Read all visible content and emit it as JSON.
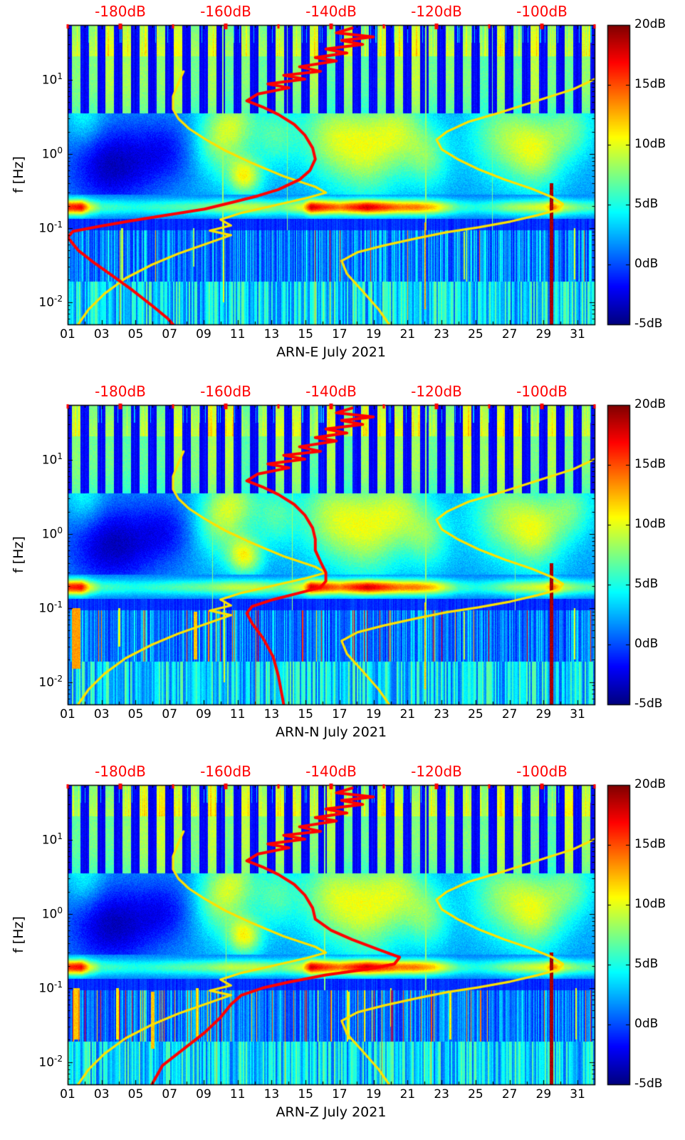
{
  "chart_data": {
    "type": "heatmap",
    "subtype": "seismic PSD spectrograms (jet colormap) with overlaid median PSD curve (red) and noise-model curves (yellow); top x-axis in dB (red) for the overlay curves",
    "station": "ARN",
    "month": "July 2021",
    "colormap": "jet",
    "axes": {
      "x": {
        "range_days": [
          1,
          32
        ],
        "tick_labels": [
          "01",
          "03",
          "05",
          "07",
          "09",
          "11",
          "13",
          "15",
          "17",
          "19",
          "21",
          "23",
          "25",
          "27",
          "29",
          "31"
        ],
        "tick_days": [
          1,
          3,
          5,
          7,
          9,
          11,
          13,
          15,
          17,
          19,
          21,
          23,
          25,
          27,
          29,
          31
        ]
      },
      "x_top": {
        "unit": "dB",
        "color": "#ff0000",
        "range_dB": [
          -190,
          -90
        ],
        "tick_labels": [
          "-180dB",
          "-160dB",
          "-140dB",
          "-120dB",
          "-100dB"
        ],
        "tick_values": [
          -180,
          -160,
          -140,
          -120,
          -100
        ]
      },
      "y": {
        "label": "f [Hz]",
        "scale": "log",
        "range_hz": [
          0.005,
          55
        ],
        "tick_labels": [
          "10^1",
          "10^0",
          "10^-1",
          "10^-2"
        ],
        "tick_values": [
          10,
          1,
          0.1,
          0.01
        ]
      },
      "colorbar": {
        "range_dB": [
          -5,
          20
        ],
        "tick_labels": [
          "20dB",
          "15dB",
          "10dB",
          "5dB",
          "0dB",
          "-5dB"
        ],
        "tick_values": [
          20,
          15,
          10,
          5,
          0,
          -5
        ]
      }
    },
    "overlays": {
      "red_color": "#ff0000",
      "yellow_color": "#ffe100",
      "noise_model_low_dB_hz": [
        [
          -168,
          13
        ],
        [
          -169,
          9
        ],
        [
          -170,
          6
        ],
        [
          -170,
          4
        ],
        [
          -169,
          3
        ],
        [
          -167,
          2.2
        ],
        [
          -164,
          1.6
        ],
        [
          -160,
          1.1
        ],
        [
          -155,
          0.75
        ],
        [
          -149,
          0.5
        ],
        [
          -143,
          0.36
        ],
        [
          -141,
          0.3
        ],
        [
          -145,
          0.25
        ],
        [
          -151,
          0.2
        ],
        [
          -157,
          0.16
        ],
        [
          -161,
          0.13
        ],
        [
          -159,
          0.108
        ],
        [
          -163,
          0.092
        ],
        [
          -159,
          0.08
        ],
        [
          -164,
          0.06
        ],
        [
          -169,
          0.045
        ],
        [
          -174,
          0.032
        ],
        [
          -179,
          0.021
        ],
        [
          -183,
          0.013
        ],
        [
          -186,
          0.008
        ],
        [
          -188,
          0.005
        ]
      ],
      "noise_model_high_dB_hz": [
        [
          -89,
          11
        ],
        [
          -94,
          7.5
        ],
        [
          -101,
          5.2
        ],
        [
          -108,
          3.6
        ],
        [
          -114,
          2.7
        ],
        [
          -118,
          2.0
        ],
        [
          -120,
          1.55
        ],
        [
          -119,
          1.15
        ],
        [
          -116,
          0.85
        ],
        [
          -112,
          0.62
        ],
        [
          -107,
          0.45
        ],
        [
          -102,
          0.34
        ],
        [
          -98,
          0.26
        ],
        [
          -96,
          0.21
        ],
        [
          -97,
          0.175
        ],
        [
          -101,
          0.148
        ],
        [
          -106,
          0.122
        ],
        [
          -112,
          0.102
        ],
        [
          -118,
          0.088
        ],
        [
          -124,
          0.072
        ],
        [
          -130,
          0.058
        ],
        [
          -135,
          0.047
        ],
        [
          -138,
          0.036
        ],
        [
          -137,
          0.024
        ],
        [
          -134,
          0.014
        ],
        [
          -131,
          0.008
        ],
        [
          -129,
          0.005
        ]
      ]
    },
    "texture": {
      "microseism_envelope_day_dB": [
        [
          1,
          15
        ],
        [
          1.8,
          16
        ],
        [
          2.3,
          9
        ],
        [
          3,
          5
        ],
        [
          5,
          4
        ],
        [
          7,
          5
        ],
        [
          9,
          6
        ],
        [
          10.5,
          8
        ],
        [
          12,
          8
        ],
        [
          13.5,
          6
        ],
        [
          14.8,
          9
        ],
        [
          15.3,
          17
        ],
        [
          16,
          15
        ],
        [
          17,
          13
        ],
        [
          17.8,
          15
        ],
        [
          18.6,
          17
        ],
        [
          19.5,
          15
        ],
        [
          20.5,
          13
        ],
        [
          21.5,
          13
        ],
        [
          22.5,
          11
        ],
        [
          23.2,
          8
        ],
        [
          24,
          5
        ],
        [
          25,
          4
        ],
        [
          26,
          5
        ],
        [
          27,
          7
        ],
        [
          28,
          8
        ],
        [
          29,
          9
        ],
        [
          29.6,
          13
        ],
        [
          30.2,
          8
        ],
        [
          31,
          6
        ],
        [
          32,
          5
        ]
      ],
      "blobs_day_logf_sd_sf_amp": [
        [
          3.6,
          -0.15,
          1.8,
          0.38,
          -5.5
        ],
        [
          6.8,
          0.05,
          1.2,
          0.3,
          -3
        ],
        [
          9.8,
          0.2,
          1.0,
          0.35,
          5.5
        ],
        [
          11.4,
          -0.3,
          0.7,
          0.18,
          8
        ],
        [
          11.0,
          0.45,
          0.9,
          0.3,
          4.5
        ],
        [
          13.2,
          0.25,
          0.9,
          0.3,
          4
        ],
        [
          16.3,
          0.25,
          1.3,
          0.4,
          5.5
        ],
        [
          18.6,
          0.05,
          1.4,
          0.45,
          6.5
        ],
        [
          20.6,
          0.35,
          1.1,
          0.35,
          5
        ],
        [
          22.2,
          -0.05,
          0.9,
          0.3,
          4.5
        ],
        [
          26.6,
          0.25,
          1.4,
          0.4,
          5.5
        ],
        [
          28.6,
          0.0,
          1.1,
          0.35,
          6
        ],
        [
          30.6,
          0.35,
          1.0,
          0.3,
          4.5
        ],
        [
          2.0,
          0.5,
          0.8,
          0.3,
          3
        ]
      ]
    },
    "panels": [
      {
        "xlabel": "ARN-E July 2021",
        "ylabel": "f [Hz]",
        "seed": 11,
        "low_spike_prob": 0.015,
        "median_psd_dB_hz": [
          [
            -136,
            50
          ],
          [
            -139,
            43
          ],
          [
            -132,
            38
          ],
          [
            -138,
            34
          ],
          [
            -134,
            30
          ],
          [
            -141,
            26
          ],
          [
            -137,
            23
          ],
          [
            -143,
            20
          ],
          [
            -139,
            18
          ],
          [
            -146,
            15
          ],
          [
            -142,
            13
          ],
          [
            -149,
            11.5
          ],
          [
            -145,
            10.2
          ],
          [
            -152,
            8.8
          ],
          [
            -148,
            7.8
          ],
          [
            -154,
            6.4
          ],
          [
            -156,
            5.2
          ],
          [
            -153,
            4.3
          ],
          [
            -150,
            3.4
          ],
          [
            -147,
            2.5
          ],
          [
            -145,
            1.8
          ],
          [
            -143.5,
            1.2
          ],
          [
            -143,
            0.85
          ],
          [
            -144,
            0.6
          ],
          [
            -146,
            0.45
          ],
          [
            -150,
            0.33
          ],
          [
            -154,
            0.27
          ],
          [
            -159,
            0.22
          ],
          [
            -164,
            0.18
          ],
          [
            -171,
            0.15
          ],
          [
            -178,
            0.125
          ],
          [
            -184,
            0.105
          ],
          [
            -189,
            0.09
          ],
          [
            -190,
            0.075
          ],
          [
            -188,
            0.05
          ],
          [
            -185,
            0.034
          ],
          [
            -182,
            0.024
          ],
          [
            -178,
            0.015
          ],
          [
            -174,
            0.009
          ],
          [
            -171,
            0.006
          ],
          [
            -170,
            0.005
          ]
        ],
        "spikes_day_w_ftop_fbot_dB": [
          [
            4.2,
            0.06,
            0.1,
            0.02,
            9
          ],
          [
            8.4,
            0.05,
            0.1,
            0.03,
            8
          ],
          [
            10.15,
            0.04,
            0.12,
            0.01,
            10
          ],
          [
            22.0,
            0.05,
            0.12,
            0.008,
            13
          ],
          [
            24.3,
            0.05,
            0.09,
            0.02,
            9
          ],
          [
            29.45,
            0.09,
            0.4,
            0.005,
            19
          ],
          [
            30.8,
            0.04,
            0.1,
            0.02,
            10
          ]
        ],
        "streaks_day_w_dB": [
          [
            10.12,
            0.035,
            8
          ],
          [
            13.9,
            0.03,
            7.5
          ],
          [
            22.05,
            0.03,
            8
          ],
          [
            25.98,
            0.025,
            7
          ]
        ]
      },
      {
        "xlabel": "ARN-N July 2021",
        "ylabel": "f [Hz]",
        "seed": 23,
        "low_spike_prob": 0.05,
        "median_psd_dB_hz": [
          [
            -136,
            50
          ],
          [
            -139,
            43
          ],
          [
            -132,
            38
          ],
          [
            -138,
            34
          ],
          [
            -134,
            30
          ],
          [
            -141,
            26
          ],
          [
            -137,
            23
          ],
          [
            -143,
            20
          ],
          [
            -139,
            18
          ],
          [
            -146,
            15
          ],
          [
            -142,
            13
          ],
          [
            -149,
            11.5
          ],
          [
            -145,
            10.2
          ],
          [
            -152,
            8.8
          ],
          [
            -148,
            7.8
          ],
          [
            -154,
            6.4
          ],
          [
            -156,
            5.2
          ],
          [
            -153,
            4.3
          ],
          [
            -150,
            3.4
          ],
          [
            -147,
            2.5
          ],
          [
            -145,
            1.8
          ],
          [
            -143.5,
            1.2
          ],
          [
            -143,
            0.85
          ],
          [
            -143,
            0.6
          ],
          [
            -142,
            0.42
          ],
          [
            -141,
            0.3
          ],
          [
            -141,
            0.23
          ],
          [
            -142,
            0.19
          ],
          [
            -146,
            0.16
          ],
          [
            -151,
            0.13
          ],
          [
            -155,
            0.105
          ],
          [
            -156,
            0.085
          ],
          [
            -155,
            0.062
          ],
          [
            -153,
            0.04
          ],
          [
            -151,
            0.022
          ],
          [
            -150,
            0.012
          ],
          [
            -149,
            0.005
          ]
        ],
        "spikes_day_w_ftop_fbot_dB": [
          [
            1.5,
            0.25,
            0.1,
            0.015,
            13
          ],
          [
            4.0,
            0.06,
            0.1,
            0.03,
            10
          ],
          [
            8.5,
            0.12,
            0.09,
            0.02,
            12
          ],
          [
            10.2,
            0.04,
            0.12,
            0.01,
            10
          ],
          [
            22.0,
            0.05,
            0.12,
            0.008,
            12
          ],
          [
            24.3,
            0.05,
            0.09,
            0.02,
            9
          ],
          [
            29.45,
            0.09,
            0.4,
            0.005,
            19
          ],
          [
            30.8,
            0.04,
            0.1,
            0.02,
            10
          ]
        ],
        "streaks_day_w_dB": [
          [
            9.5,
            0.03,
            7.5
          ],
          [
            14.2,
            0.03,
            8
          ],
          [
            22.05,
            0.03,
            8
          ],
          [
            27.3,
            0.025,
            7
          ]
        ]
      },
      {
        "xlabel": "ARN-Z July 2021",
        "ylabel": "f [Hz]",
        "seed": 37,
        "low_spike_prob": 0.08,
        "median_psd_dB_hz": [
          [
            -136,
            50
          ],
          [
            -139,
            43
          ],
          [
            -132,
            38
          ],
          [
            -138,
            34
          ],
          [
            -134,
            30
          ],
          [
            -141,
            26
          ],
          [
            -137,
            23
          ],
          [
            -143,
            20
          ],
          [
            -139,
            18
          ],
          [
            -146,
            15
          ],
          [
            -142,
            13
          ],
          [
            -149,
            11.5
          ],
          [
            -145,
            10.2
          ],
          [
            -152,
            8.8
          ],
          [
            -148,
            7.8
          ],
          [
            -154,
            6.4
          ],
          [
            -156,
            5.2
          ],
          [
            -153,
            4.3
          ],
          [
            -150,
            3.4
          ],
          [
            -147,
            2.5
          ],
          [
            -145,
            1.8
          ],
          [
            -143.5,
            1.2
          ],
          [
            -143,
            0.85
          ],
          [
            -140,
            0.6
          ],
          [
            -136,
            0.45
          ],
          [
            -131,
            0.33
          ],
          [
            -127,
            0.26
          ],
          [
            -128,
            0.21
          ],
          [
            -133,
            0.18
          ],
          [
            -141,
            0.15
          ],
          [
            -148,
            0.12
          ],
          [
            -153,
            0.1
          ],
          [
            -157,
            0.08
          ],
          [
            -159,
            0.06
          ],
          [
            -161,
            0.04
          ],
          [
            -164,
            0.025
          ],
          [
            -168,
            0.015
          ],
          [
            -172,
            0.009
          ],
          [
            -174,
            0.005
          ]
        ],
        "spikes_day_w_ftop_fbot_dB": [
          [
            1.5,
            0.2,
            0.1,
            0.02,
            12
          ],
          [
            3.9,
            0.08,
            0.1,
            0.02,
            11
          ],
          [
            6.0,
            0.1,
            0.09,
            0.015,
            12
          ],
          [
            8.6,
            0.1,
            0.1,
            0.02,
            11
          ],
          [
            17.5,
            0.06,
            0.09,
            0.02,
            10
          ],
          [
            20.0,
            0.06,
            0.1,
            0.03,
            10
          ],
          [
            23.5,
            0.06,
            0.09,
            0.02,
            11
          ],
          [
            29.45,
            0.12,
            0.3,
            0.005,
            19
          ],
          [
            30.9,
            0.05,
            0.1,
            0.02,
            10
          ]
        ],
        "streaks_day_w_dB": [
          [
            10.3,
            0.03,
            8
          ],
          [
            16.1,
            0.03,
            7.5
          ],
          [
            22.05,
            0.03,
            8
          ]
        ]
      }
    ]
  }
}
